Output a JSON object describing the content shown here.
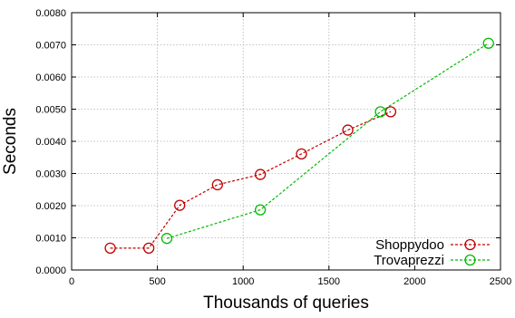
{
  "chart_data": {
    "type": "line",
    "xlabel": "Thousands of queries",
    "ylabel": "Seconds",
    "xlim": [
      0,
      2500
    ],
    "ylim": [
      0,
      0.008
    ],
    "x_ticks": [
      "0",
      "500",
      "1000",
      "1500",
      "2000",
      "2500"
    ],
    "x_tick_values": [
      0,
      500,
      1000,
      1500,
      2000,
      2500
    ],
    "y_ticks": [
      "0.0000",
      "0.0010",
      "0.0020",
      "0.0030",
      "0.0040",
      "0.0050",
      "0.0060",
      "0.0070",
      "0.0080"
    ],
    "y_tick_values": [
      0,
      0.001,
      0.002,
      0.003,
      0.004,
      0.005,
      0.006,
      0.007,
      0.008
    ],
    "grid": true,
    "legend_position": "bottom-right",
    "series": [
      {
        "name": "Shoppydoo",
        "color": "#c00000",
        "marker": "circle",
        "line_style": "dashed",
        "x": [
          225,
          450,
          630,
          850,
          1100,
          1340,
          1610,
          1860
        ],
        "y": [
          0.00068,
          0.00068,
          0.00201,
          0.00265,
          0.00297,
          0.00361,
          0.00435,
          0.00492
        ]
      },
      {
        "name": "Trovaprezzi",
        "color": "#00bb00",
        "marker": "circle",
        "line_style": "dashed",
        "x": [
          555,
          1100,
          1800,
          2430
        ],
        "y": [
          0.00098,
          0.00187,
          0.00492,
          0.00705
        ]
      }
    ]
  }
}
